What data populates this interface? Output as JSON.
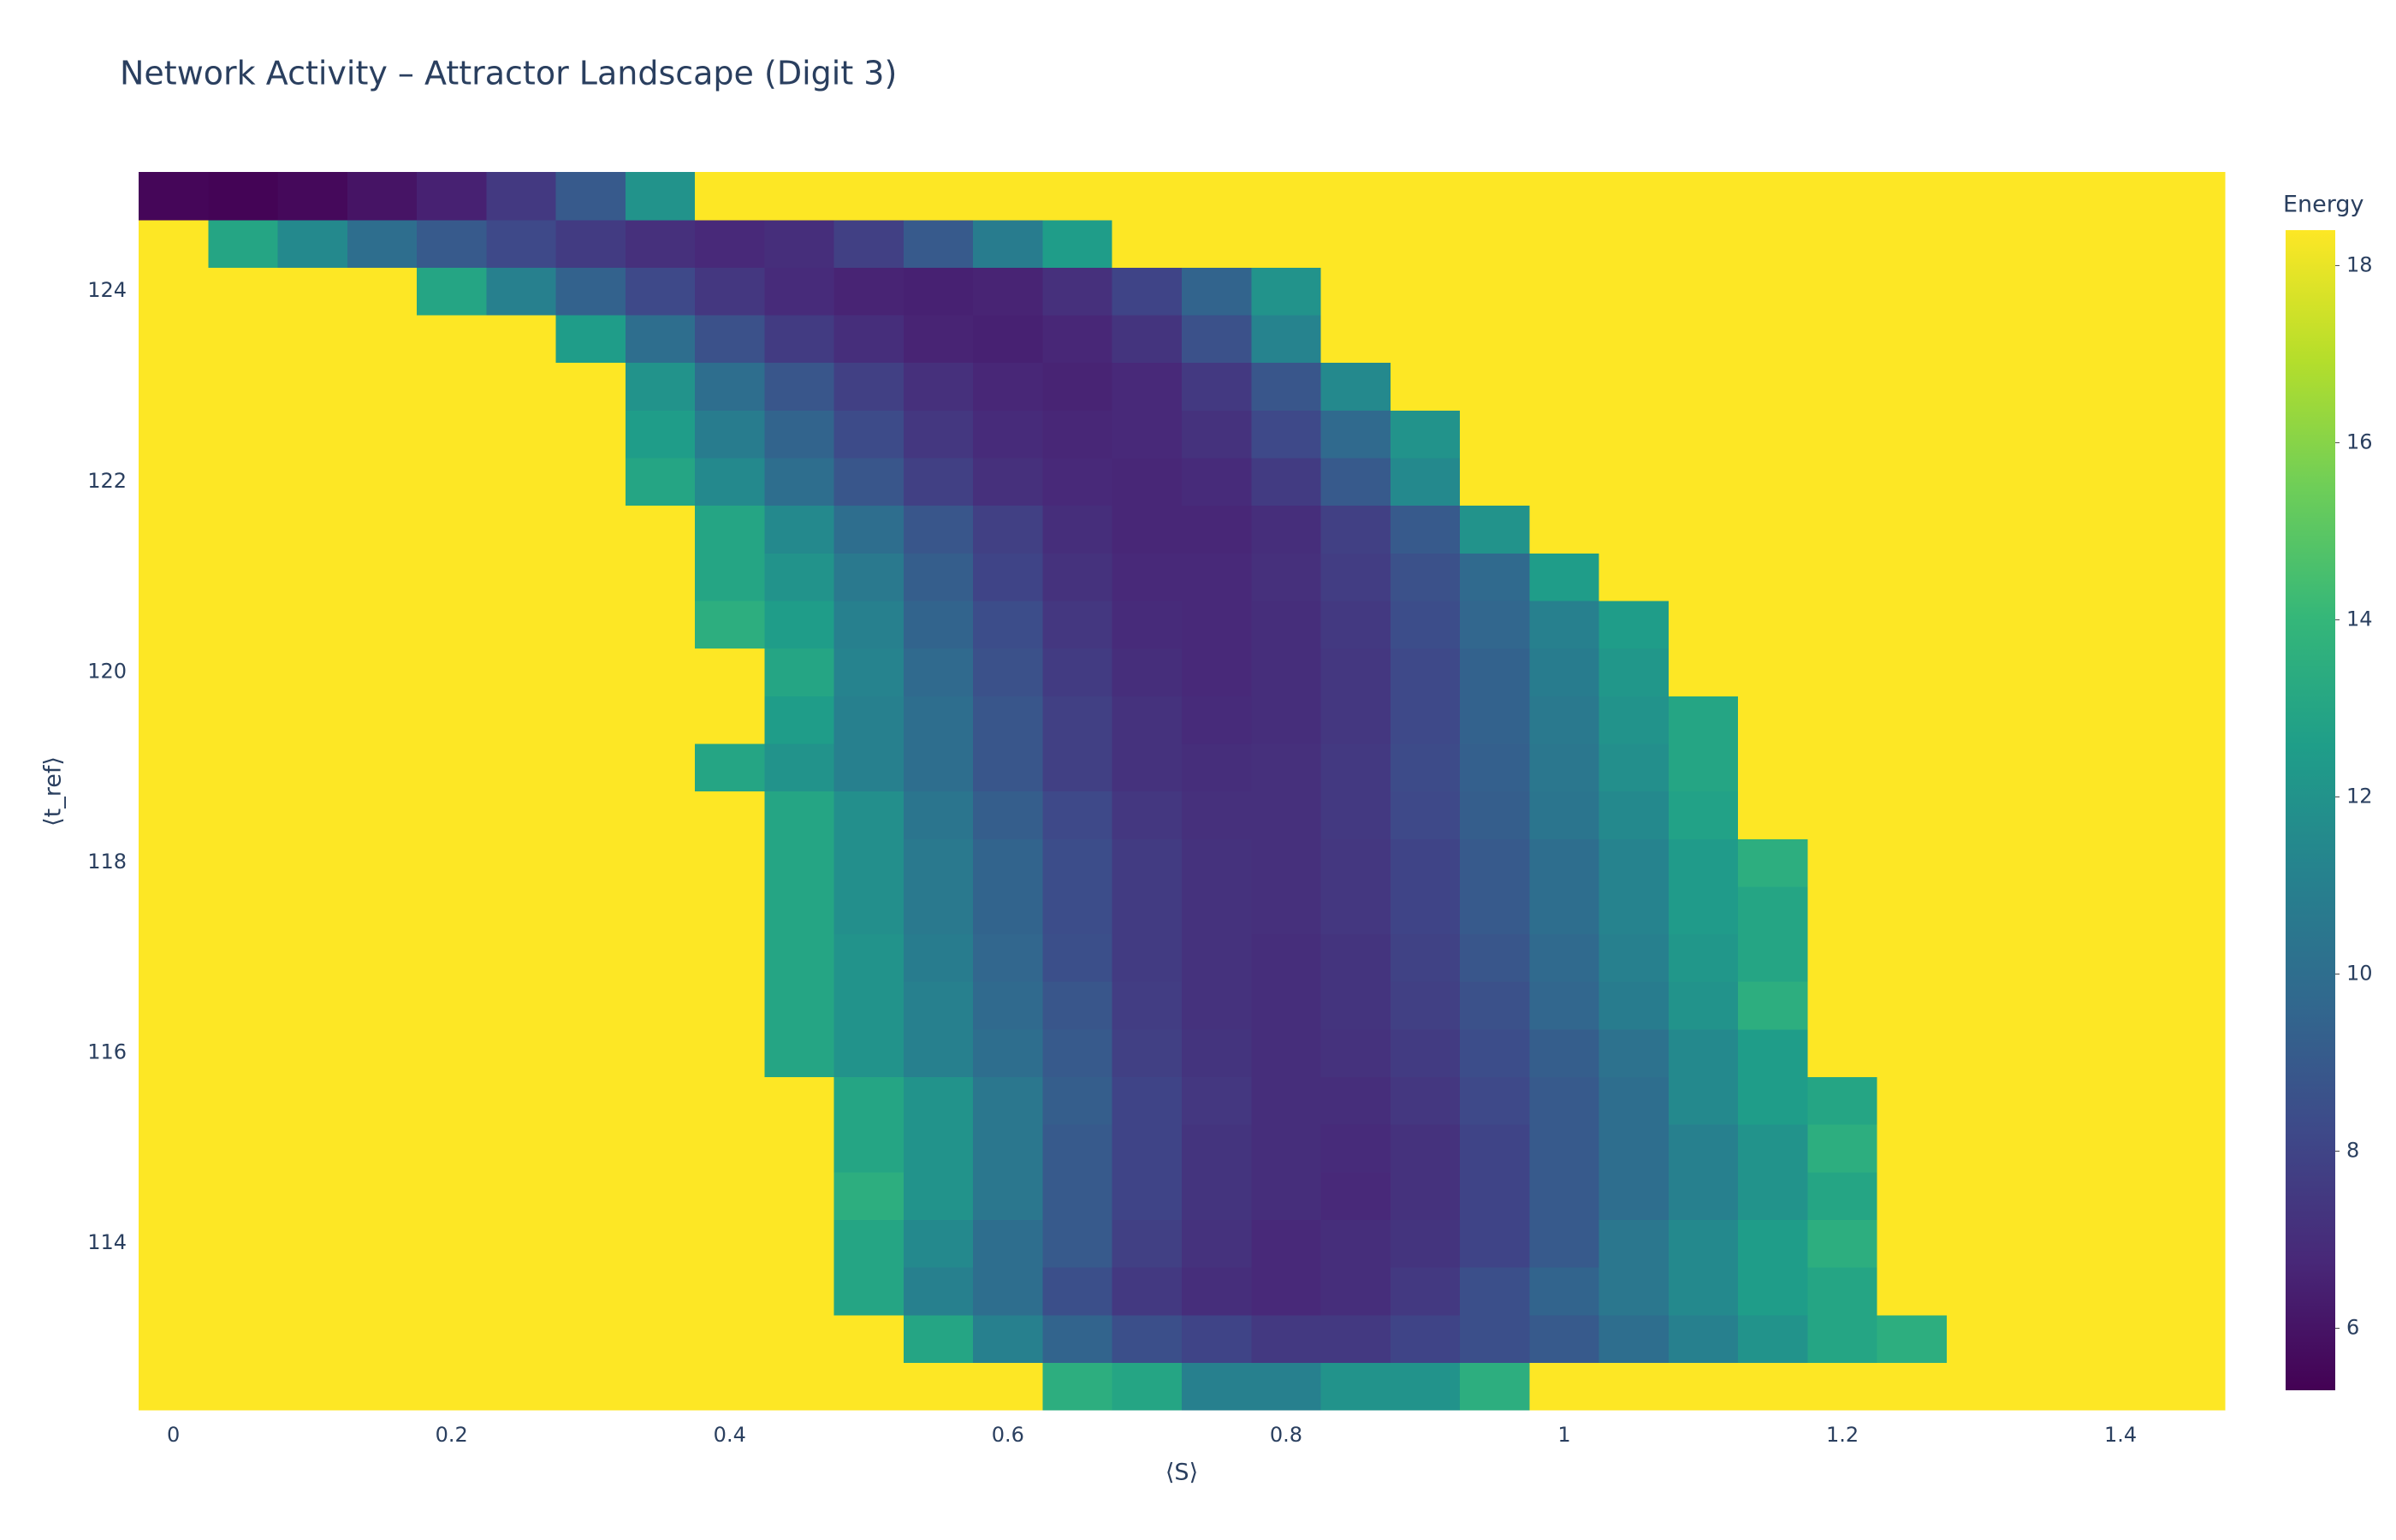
{
  "chart_data": {
    "type": "heatmap",
    "title": "Network Activity – Attractor Landscape (Digit 3)",
    "x_label": "⟨S⟩",
    "y_label": "⟨t_ref⟩",
    "colorbar_title": "Energy",
    "x": [
      0,
      0.05,
      0.1,
      0.15,
      0.2,
      0.25,
      0.3,
      0.35,
      0.4,
      0.45,
      0.5,
      0.55,
      0.6,
      0.65,
      0.7,
      0.75,
      0.8,
      0.85,
      0.9,
      0.95,
      1,
      1.05,
      1.1,
      1.15,
      1.2,
      1.25,
      1.3,
      1.35,
      1.4,
      1.45
    ],
    "y": [
      112.5,
      113,
      113.5,
      114,
      114.5,
      115,
      115.5,
      116,
      116.5,
      117,
      117.5,
      118,
      118.5,
      119,
      119.5,
      120,
      120.5,
      121,
      121.5,
      122,
      122.5,
      123,
      123.5,
      124,
      124.5,
      125
    ],
    "z": [
      [
        18.4,
        18.4,
        18.4,
        18.4,
        18.4,
        18.4,
        18.4,
        18.4,
        18.4,
        18.4,
        18.4,
        18.4,
        18.4,
        13.5,
        13,
        11,
        11,
        12,
        12,
        13.5,
        18.4,
        18.4,
        18.4,
        18.4,
        18.4,
        18.4,
        18.4,
        18.4,
        18.4,
        18.4
      ],
      [
        18.4,
        18.4,
        18.4,
        18.4,
        18.4,
        18.4,
        18.4,
        18.4,
        18.4,
        18.4,
        18.4,
        13,
        11,
        9.5,
        8.5,
        8,
        7.5,
        7.5,
        8,
        8.5,
        9,
        10,
        11,
        12,
        13,
        13.5,
        18.4,
        18.4,
        18.4,
        18.4
      ],
      [
        18.4,
        18.4,
        18.4,
        18.4,
        18.4,
        18.4,
        18.4,
        18.4,
        18.4,
        18.4,
        13,
        11,
        10,
        8.5,
        7.5,
        7,
        6.8,
        7,
        7.5,
        8.5,
        9.5,
        10.5,
        11.5,
        12.5,
        13,
        18.4,
        18.4,
        18.4,
        18.4,
        18.4
      ],
      [
        18.4,
        18.4,
        18.4,
        18.4,
        18.4,
        18.4,
        18.4,
        18.4,
        18.4,
        18.4,
        13,
        11.5,
        10,
        9,
        7.8,
        7.2,
        6.8,
        7,
        7.3,
        8,
        9,
        10.5,
        11.5,
        12.5,
        13.5,
        18.4,
        18.4,
        18.4,
        18.4,
        18.4
      ],
      [
        18.4,
        18.4,
        18.4,
        18.4,
        18.4,
        18.4,
        18.4,
        18.4,
        18.4,
        18.4,
        13.5,
        12,
        10.5,
        9,
        8,
        7.3,
        7,
        6.8,
        7.2,
        8,
        9,
        10,
        11,
        12,
        13,
        18.4,
        18.4,
        18.4,
        18.4,
        18.4
      ],
      [
        18.4,
        18.4,
        18.4,
        18.4,
        18.4,
        18.4,
        18.4,
        18.4,
        18.4,
        18.4,
        13,
        12,
        10.5,
        9,
        8,
        7.3,
        7,
        6.9,
        7.2,
        8,
        9,
        10,
        11,
        12,
        13.5,
        18.4,
        18.4,
        18.4,
        18.4,
        18.4
      ],
      [
        18.4,
        18.4,
        18.4,
        18.4,
        18.4,
        18.4,
        18.4,
        18.4,
        18.4,
        18.4,
        13,
        12,
        10.5,
        9.2,
        8,
        7.4,
        7,
        7,
        7.4,
        8.2,
        9,
        10,
        11.5,
        12.5,
        13,
        18.4,
        18.4,
        18.4,
        18.4,
        18.4
      ],
      [
        18.4,
        18.4,
        18.4,
        18.4,
        18.4,
        18.4,
        18.4,
        18.4,
        18.4,
        13,
        12,
        11,
        10,
        9,
        7.8,
        7.3,
        7,
        7.2,
        7.6,
        8.4,
        9.2,
        10.2,
        11.5,
        12.5,
        18.4,
        18.4,
        18.4,
        18.4,
        18.4,
        18.4
      ],
      [
        18.4,
        18.4,
        18.4,
        18.4,
        18.4,
        18.4,
        18.4,
        18.4,
        18.4,
        13,
        12,
        11,
        9.8,
        8.8,
        7.7,
        7.2,
        7,
        7.3,
        7.8,
        8.6,
        9.6,
        10.8,
        12,
        13.5,
        18.4,
        18.4,
        18.4,
        18.4,
        18.4,
        18.4
      ],
      [
        18.4,
        18.4,
        18.4,
        18.4,
        18.4,
        18.4,
        18.4,
        18.4,
        18.4,
        13,
        12,
        10.8,
        9.6,
        8.5,
        7.6,
        7.2,
        7,
        7.3,
        7.9,
        8.8,
        9.8,
        11,
        12.2,
        13,
        18.4,
        18.4,
        18.4,
        18.4,
        18.4,
        18.4
      ],
      [
        18.4,
        18.4,
        18.4,
        18.4,
        18.4,
        18.4,
        18.4,
        18.4,
        18.4,
        13,
        11.8,
        10.6,
        9.5,
        8.4,
        7.6,
        7.2,
        7.1,
        7.4,
        8,
        9,
        10,
        11.2,
        12.4,
        13,
        18.4,
        18.4,
        18.4,
        18.4,
        18.4,
        18.4
      ],
      [
        18.4,
        18.4,
        18.4,
        18.4,
        18.4,
        18.4,
        18.4,
        18.4,
        18.4,
        13,
        11.8,
        10.6,
        9.5,
        8.4,
        7.6,
        7.2,
        7.1,
        7.4,
        8,
        9,
        10,
        11.2,
        12.4,
        13.5,
        18.4,
        18.4,
        18.4,
        18.4,
        18.4,
        18.4
      ],
      [
        18.4,
        18.4,
        18.4,
        18.4,
        18.4,
        18.4,
        18.4,
        18.4,
        18.4,
        13,
        11.8,
        10.4,
        9.2,
        8.2,
        7.4,
        7.1,
        7.1,
        7.5,
        8.2,
        9.2,
        10.4,
        11.5,
        12.8,
        18.4,
        18.4,
        18.4,
        18.4,
        18.4,
        18.4,
        18.4
      ],
      [
        18.4,
        18.4,
        18.4,
        18.4,
        18.4,
        18.4,
        18.4,
        18.4,
        13,
        12,
        11,
        10,
        8.8,
        7.8,
        7.2,
        7,
        7.1,
        7.5,
        8.3,
        9.3,
        10.5,
        11.8,
        13,
        18.4,
        18.4,
        18.4,
        18.4,
        18.4,
        18.4,
        18.4
      ],
      [
        18.4,
        18.4,
        18.4,
        18.4,
        18.4,
        18.4,
        18.4,
        18.4,
        18.4,
        12.5,
        11,
        10,
        8.8,
        7.8,
        7.2,
        6.9,
        7,
        7.4,
        8.2,
        9.4,
        10.6,
        12,
        13,
        18.4,
        18.4,
        18.4,
        18.4,
        18.4,
        18.4,
        18.4
      ],
      [
        18.4,
        18.4,
        18.4,
        18.4,
        18.4,
        18.4,
        18.4,
        18.4,
        18.4,
        13,
        11.2,
        9.8,
        8.6,
        7.6,
        7,
        6.8,
        7,
        7.4,
        8.2,
        9.4,
        10.8,
        12.2,
        18.4,
        18.4,
        18.4,
        18.4,
        18.4,
        18.4,
        18.4,
        18.4
      ],
      [
        18.4,
        18.4,
        18.4,
        18.4,
        18.4,
        18.4,
        18.4,
        18.4,
        13.5,
        12.5,
        11,
        9.5,
        8.4,
        7.4,
        6.9,
        6.8,
        7,
        7.5,
        8.4,
        9.6,
        11,
        12.5,
        18.4,
        18.4,
        18.4,
        18.4,
        18.4,
        18.4,
        18.4,
        18.4
      ],
      [
        18.4,
        18.4,
        18.4,
        18.4,
        18.4,
        18.4,
        18.4,
        18.4,
        13,
        12,
        10.6,
        9.2,
        8,
        7.2,
        6.8,
        6.8,
        7.1,
        7.7,
        8.6,
        9.8,
        12.5,
        18.4,
        18.4,
        18.4,
        18.4,
        18.4,
        18.4,
        18.4,
        18.4,
        18.4
      ],
      [
        18.4,
        18.4,
        18.4,
        18.4,
        18.4,
        18.4,
        18.4,
        18.4,
        13,
        11.5,
        10,
        8.8,
        7.8,
        7,
        6.7,
        6.7,
        7,
        7.8,
        9,
        12,
        18.4,
        18.4,
        18.4,
        18.4,
        18.4,
        18.4,
        18.4,
        18.4,
        18.4,
        18.4
      ],
      [
        18.4,
        18.4,
        18.4,
        18.4,
        18.4,
        18.4,
        18.4,
        13,
        11.5,
        10,
        8.8,
        7.8,
        7.1,
        6.8,
        6.7,
        6.9,
        7.6,
        9,
        11.5,
        18.4,
        18.4,
        18.4,
        18.4,
        18.4,
        18.4,
        18.4,
        18.4,
        18.4,
        18.4,
        18.4
      ],
      [
        18.4,
        18.4,
        18.4,
        18.4,
        18.4,
        18.4,
        18.4,
        12.5,
        10.8,
        9.5,
        8.3,
        7.4,
        6.9,
        6.7,
        6.8,
        7.2,
        8.2,
        9.8,
        12,
        18.4,
        18.4,
        18.4,
        18.4,
        18.4,
        18.4,
        18.4,
        18.4,
        18.4,
        18.4,
        18.4
      ],
      [
        18.4,
        18.4,
        18.4,
        18.4,
        18.4,
        18.4,
        18.4,
        12,
        10,
        8.8,
        7.8,
        7.1,
        6.7,
        6.6,
        6.8,
        7.5,
        8.8,
        11.5,
        18.4,
        18.4,
        18.4,
        18.4,
        18.4,
        18.4,
        18.4,
        18.4,
        18.4,
        18.4,
        18.4,
        18.4
      ],
      [
        18.4,
        18.4,
        18.4,
        18.4,
        18.4,
        18.4,
        12.5,
        10,
        8.6,
        7.6,
        7,
        6.6,
        6.5,
        6.7,
        7.3,
        8.6,
        11.2,
        18.4,
        18.4,
        18.4,
        18.4,
        18.4,
        18.4,
        18.4,
        18.4,
        18.4,
        18.4,
        18.4,
        18.4,
        18.4
      ],
      [
        18.4,
        18.4,
        18.4,
        18.4,
        13,
        11,
        9.4,
        8.2,
        7.4,
        6.9,
        6.6,
        6.5,
        6.6,
        7.1,
        8,
        9.5,
        12,
        18.4,
        18.4,
        18.4,
        18.4,
        18.4,
        18.4,
        18.4,
        18.4,
        18.4,
        18.4,
        18.4,
        18.4,
        18.4
      ],
      [
        18.4,
        13,
        11.5,
        10,
        9,
        8.2,
        7.6,
        7.1,
        6.8,
        7,
        7.8,
        9,
        10.8,
        12.5,
        18.4,
        18.4,
        18.4,
        18.4,
        18.4,
        18.4,
        18.4,
        18.4,
        18.4,
        18.4,
        18.4,
        18.4,
        18.4,
        18.4,
        18.4,
        18.4
      ],
      [
        5.5,
        5.4,
        5.6,
        6,
        6.5,
        7.5,
        9,
        12,
        18.4,
        18.4,
        18.4,
        18.4,
        18.4,
        18.4,
        18.4,
        18.4,
        18.4,
        18.4,
        18.4,
        18.4,
        18.4,
        18.4,
        18.4,
        18.4,
        18.4,
        18.4,
        18.4,
        18.4,
        18.4,
        18.4
      ]
    ],
    "xlim": [
      -0.025,
      1.475
    ],
    "ylim": [
      112.25,
      125.25
    ],
    "xticks": [
      0,
      0.2,
      0.4,
      0.6,
      0.8,
      1,
      1.2,
      1.4
    ],
    "yticks": [
      114,
      116,
      118,
      120,
      122,
      124
    ],
    "zlim": [
      5.3,
      18.4
    ],
    "colorbar_ticks": [
      6,
      8,
      10,
      12,
      14,
      16,
      18
    ],
    "colorscale": [
      "#440154",
      "#482878",
      "#3e4989",
      "#31688e",
      "#26828e",
      "#1f9e89",
      "#35b779",
      "#6ece58",
      "#b5de2b",
      "#fde725"
    ]
  }
}
